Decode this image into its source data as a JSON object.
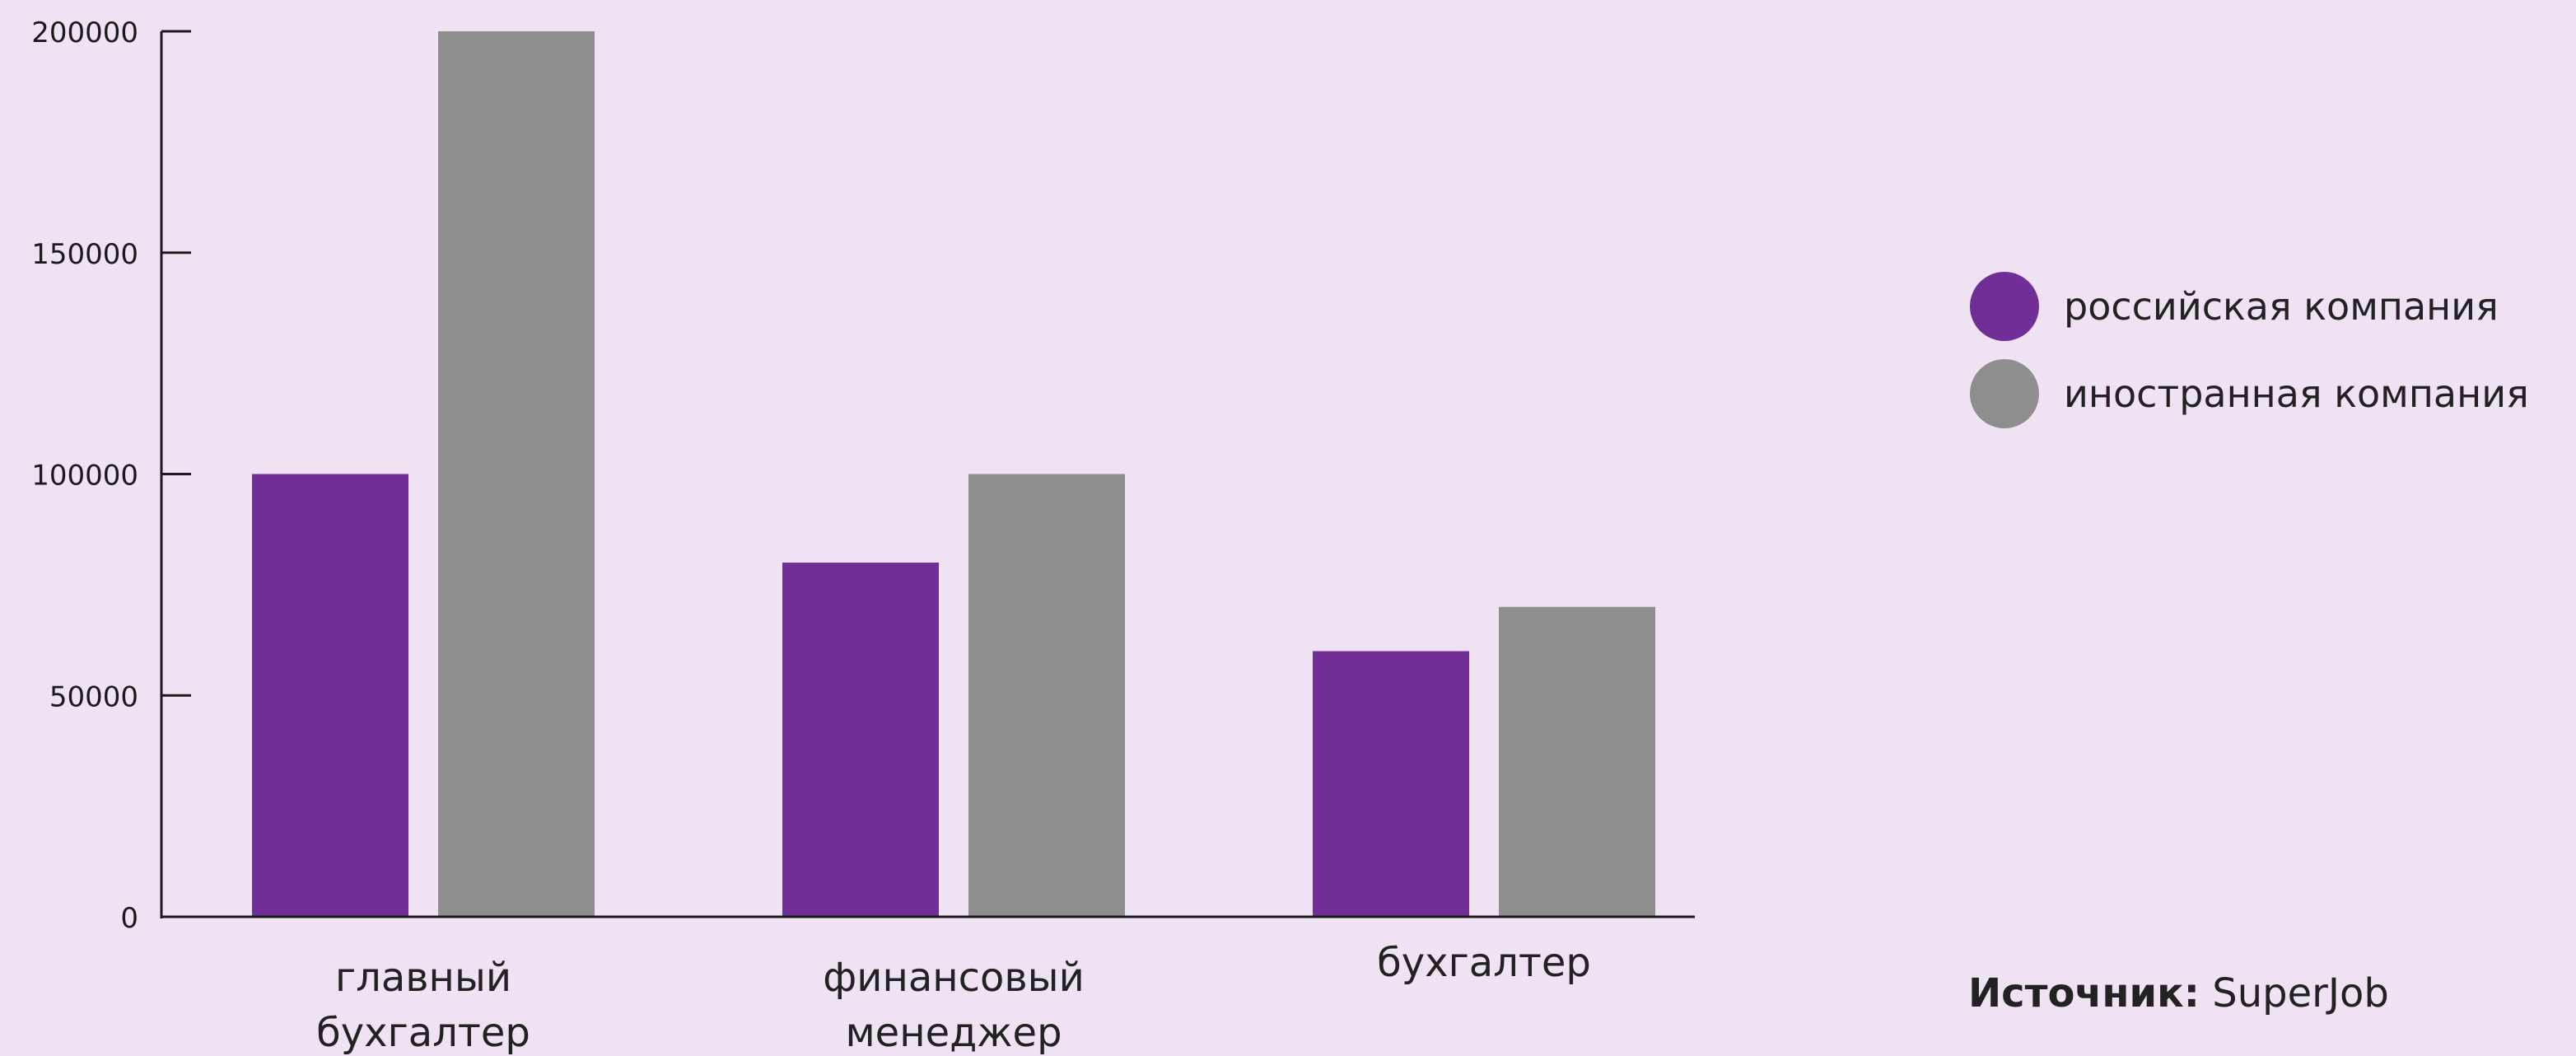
{
  "chart_data": {
    "type": "bar",
    "categories": [
      [
        "главный",
        "бухгалтер"
      ],
      [
        "финансовый",
        "менеджер"
      ],
      [
        "бухгалтер"
      ]
    ],
    "series": [
      {
        "name": "российская компания",
        "color": "#722e97",
        "values": [
          100000,
          80000,
          60000
        ]
      },
      {
        "name": "иностранная компания",
        "color": "#8e8e8e",
        "values": [
          200000,
          100000,
          70000
        ]
      }
    ],
    "yticks": [
      "0",
      "50000",
      "100000",
      "150000",
      "200000"
    ],
    "ylim": [
      0,
      200000
    ],
    "grid": false,
    "legend_position": "right"
  },
  "source": {
    "label": "Источник:",
    "value": "SuperJob"
  }
}
